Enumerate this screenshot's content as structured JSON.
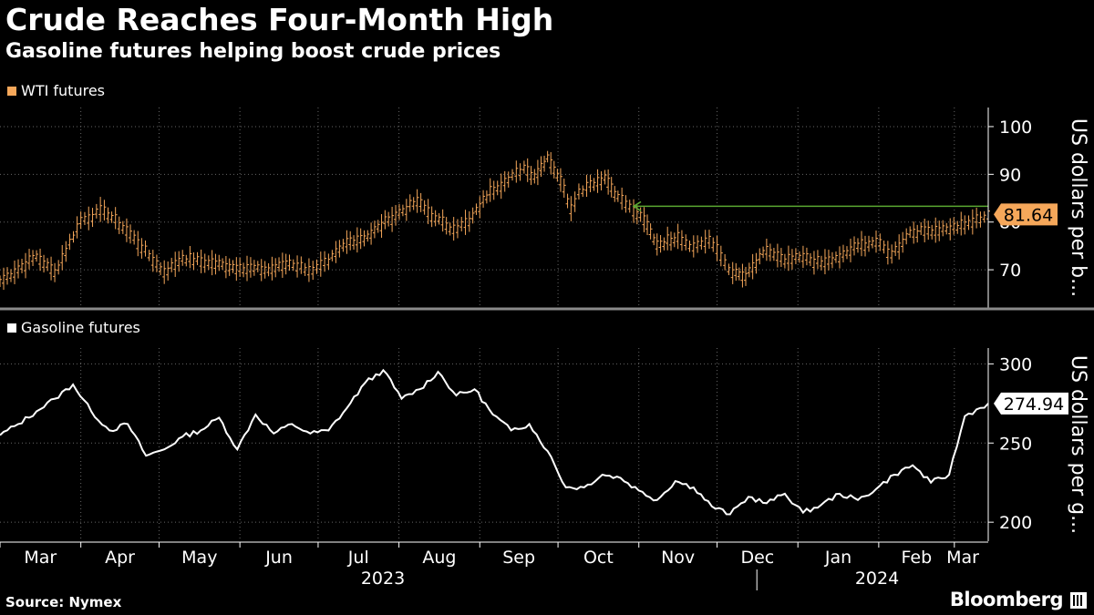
{
  "title": "Crude Reaches Four-Month High",
  "subtitle": "Gasoline futures helping boost crude prices",
  "source": "Source: Nymex",
  "brand": "Bloomberg",
  "colors": {
    "background": "#000000",
    "wti": "#f5a75a",
    "gasoline": "#ffffff",
    "reference_line": "#5aa832",
    "grid": "#666666"
  },
  "chart_data": [
    {
      "type": "ohlc",
      "legend": "WTI futures",
      "ylabel": "US dollars per b...",
      "ylim": [
        62,
        104
      ],
      "yticks": [
        70,
        80,
        90,
        100
      ],
      "last_value_label": "81.64",
      "reference_line": {
        "from": "2023-10-30",
        "to": "2024-03-14",
        "value": 83.3
      },
      "x_start": "2023-03-01",
      "x_end": "2024-03-14",
      "x": [
        "2023-03-01",
        "2023-03-15",
        "2023-03-22",
        "2023-04-01",
        "2023-04-10",
        "2023-04-20",
        "2023-05-03",
        "2023-05-10",
        "2023-05-20",
        "2023-06-01",
        "2023-06-12",
        "2023-06-20",
        "2023-06-29",
        "2023-07-05",
        "2023-07-12",
        "2023-07-20",
        "2023-07-28",
        "2023-08-08",
        "2023-08-15",
        "2023-08-22",
        "2023-08-28",
        "2023-09-05",
        "2023-09-12",
        "2023-09-18",
        "2023-09-22",
        "2023-09-27",
        "2023-10-02",
        "2023-10-06",
        "2023-10-09",
        "2023-10-12",
        "2023-10-19",
        "2023-10-24",
        "2023-10-30",
        "2023-11-03",
        "2023-11-08",
        "2023-11-16",
        "2023-11-22",
        "2023-11-28",
        "2023-12-07",
        "2023-12-12",
        "2023-12-20",
        "2023-12-27",
        "2024-01-03",
        "2024-01-10",
        "2024-01-17",
        "2024-01-24",
        "2024-01-31",
        "2024-02-06",
        "2024-02-13",
        "2024-02-20",
        "2024-02-27",
        "2024-03-05",
        "2024-03-14"
      ],
      "values": [
        67.6,
        72.9,
        69.4,
        80.4,
        82.5,
        77.5,
        69.5,
        72.5,
        71.5,
        70.5,
        70.0,
        71.5,
        69.9,
        71.7,
        75.8,
        77.1,
        80.6,
        84.4,
        80.8,
        78.6,
        80.1,
        86.7,
        88.9,
        91.5,
        89.6,
        93.7,
        88.8,
        82.8,
        86.4,
        87.6,
        89.4,
        85.4,
        82.3,
        80.5,
        75.3,
        77.0,
        74.9,
        76.4,
        69.3,
        68.6,
        74.2,
        71.8,
        72.7,
        71.4,
        72.6,
        75.1,
        75.9,
        73.3,
        77.9,
        78.3,
        78.6,
        79.4,
        81.6
      ],
      "x_ticks": [
        "Mar",
        "Apr",
        "May",
        "Jun",
        "Jul",
        "Aug",
        "Sep",
        "Oct",
        "Nov",
        "Dec",
        "Jan",
        "Feb",
        "Mar"
      ],
      "x_tick_dates": [
        "2023-03-01",
        "2023-04-01",
        "2023-05-01",
        "2023-06-01",
        "2023-07-01",
        "2023-08-01",
        "2023-09-01",
        "2023-10-01",
        "2023-11-01",
        "2023-12-01",
        "2024-01-01",
        "2024-02-01",
        "2024-03-01"
      ],
      "year_labels": [
        "2023",
        "2024"
      ]
    },
    {
      "type": "line",
      "legend": "Gasoline futures",
      "ylabel": "US dollars per g...",
      "ylim": [
        188,
        310
      ],
      "yticks": [
        200,
        250,
        300
      ],
      "last_value_label": "274.94",
      "x_start": "2023-03-01",
      "x_end": "2024-03-14",
      "x": [
        "2023-03-01",
        "2023-03-08",
        "2023-03-15",
        "2023-03-22",
        "2023-03-29",
        "2023-04-05",
        "2023-04-12",
        "2023-04-19",
        "2023-04-26",
        "2023-05-03",
        "2023-05-10",
        "2023-05-17",
        "2023-05-24",
        "2023-05-31",
        "2023-06-07",
        "2023-06-14",
        "2023-06-21",
        "2023-06-28",
        "2023-07-05",
        "2023-07-12",
        "2023-07-19",
        "2023-07-26",
        "2023-08-02",
        "2023-08-09",
        "2023-08-16",
        "2023-08-23",
        "2023-08-30",
        "2023-09-06",
        "2023-09-13",
        "2023-09-20",
        "2023-09-27",
        "2023-10-04",
        "2023-10-11",
        "2023-10-18",
        "2023-10-25",
        "2023-11-01",
        "2023-11-08",
        "2023-11-15",
        "2023-11-22",
        "2023-11-29",
        "2023-12-06",
        "2023-12-13",
        "2023-12-20",
        "2023-12-27",
        "2024-01-03",
        "2024-01-10",
        "2024-01-17",
        "2024-01-24",
        "2024-01-31",
        "2024-02-07",
        "2024-02-14",
        "2024-02-21",
        "2024-02-28",
        "2024-03-05",
        "2024-03-14"
      ],
      "values": [
        255,
        262,
        270,
        278,
        287,
        270,
        258,
        262,
        242,
        246,
        254,
        258,
        266,
        246,
        268,
        256,
        262,
        256,
        258,
        272,
        288,
        296,
        278,
        284,
        295,
        280,
        284,
        268,
        258,
        262,
        245,
        222,
        222,
        230,
        228,
        220,
        214,
        226,
        222,
        210,
        205,
        216,
        212,
        218,
        206,
        211,
        218,
        214,
        221,
        230,
        236,
        225,
        230,
        267,
        275
      ],
      "x_ticks": [
        "Mar",
        "Apr",
        "May",
        "Jun",
        "Jul",
        "Aug",
        "Sep",
        "Oct",
        "Nov",
        "Dec",
        "Jan",
        "Feb",
        "Mar"
      ],
      "x_tick_dates": [
        "2023-03-01",
        "2023-04-01",
        "2023-05-01",
        "2023-06-01",
        "2023-07-01",
        "2023-08-01",
        "2023-09-01",
        "2023-10-01",
        "2023-11-01",
        "2023-12-01",
        "2024-01-01",
        "2024-02-01",
        "2024-03-01"
      ],
      "year_labels": [
        "2023",
        "2024"
      ]
    }
  ]
}
